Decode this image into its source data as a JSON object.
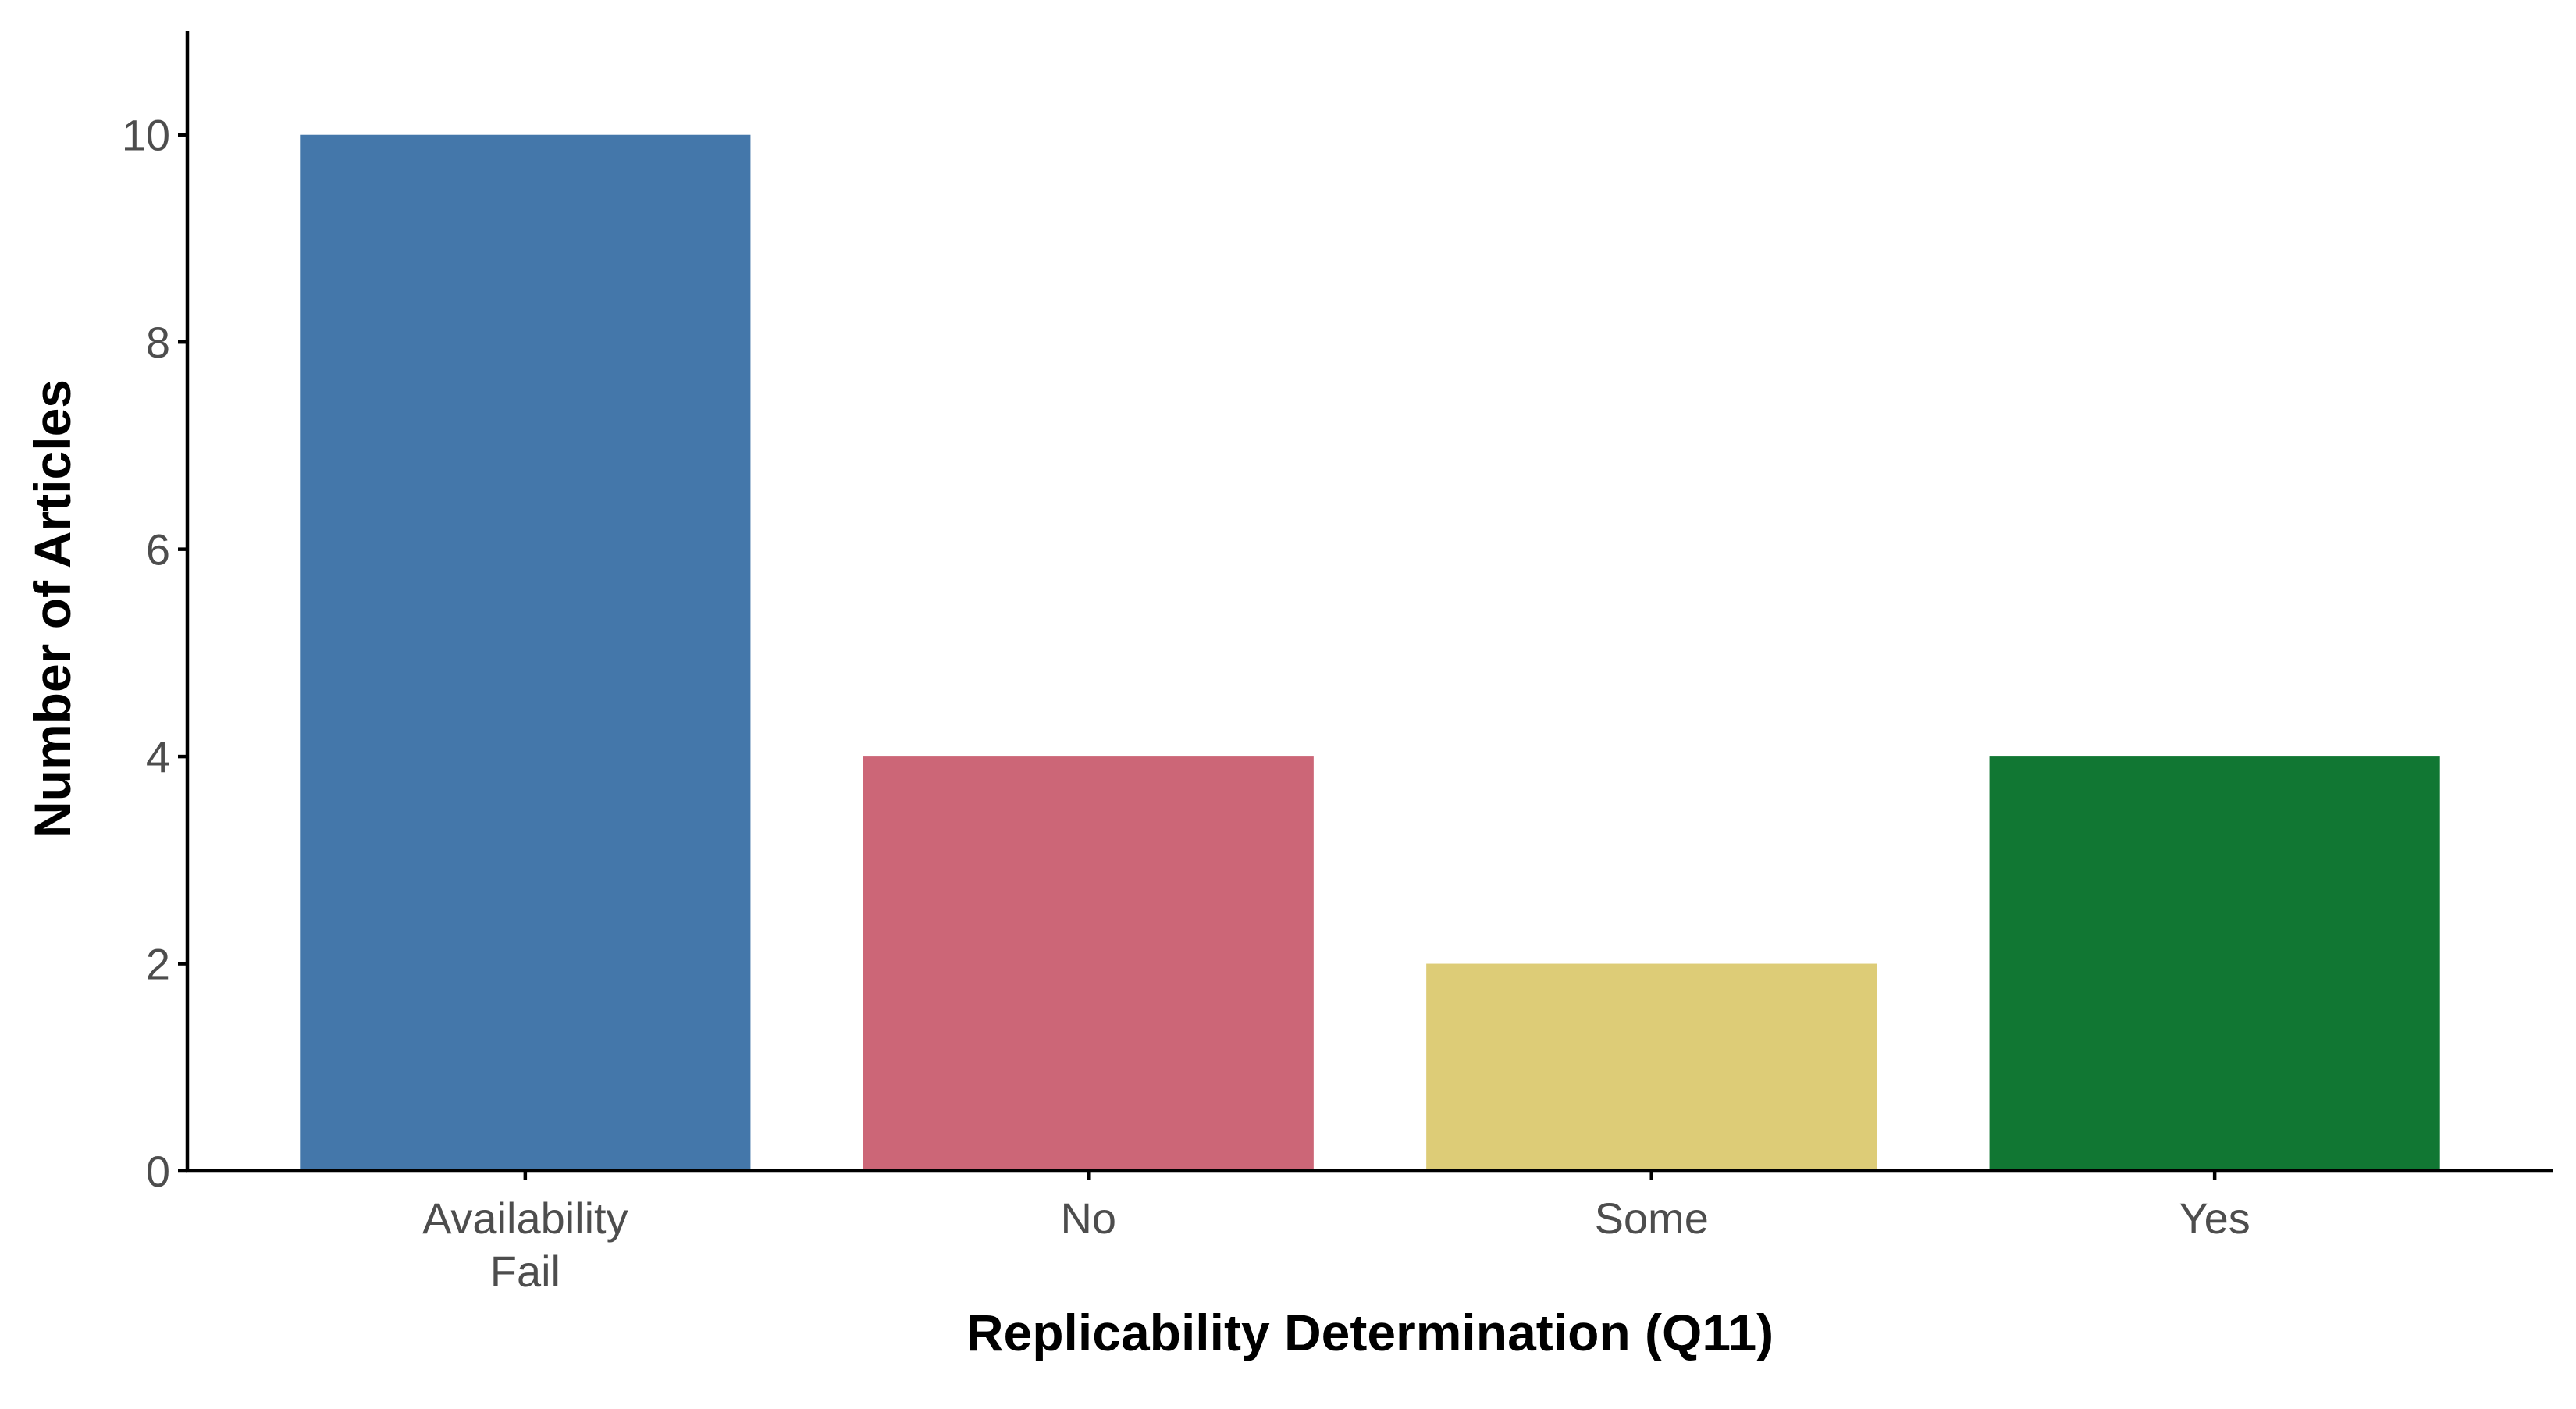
{
  "chart_data": {
    "type": "bar",
    "title": "",
    "xlabel": "Replicability Determination (Q11)",
    "ylabel": "Number of Articles",
    "categories": [
      [
        "Availability",
        "Fail"
      ],
      [
        "No"
      ],
      [
        "Some"
      ],
      [
        "Yes"
      ]
    ],
    "values": [
      10,
      4,
      2,
      4
    ],
    "colors": [
      "#4477aa",
      "#cc6677",
      "#ddcc77",
      "#117733"
    ],
    "ylim": [
      0,
      11
    ],
    "yticks": [
      0,
      2,
      4,
      6,
      8,
      10
    ],
    "grid": false,
    "legend": "none"
  }
}
